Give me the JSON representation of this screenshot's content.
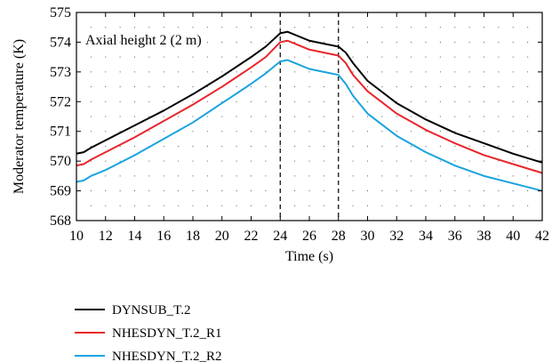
{
  "chart_data": {
    "type": "line",
    "xlabel": "Time (s)",
    "ylabel": "Moderator temperature (K)",
    "annotation": "Axial height 2 (2 m)",
    "xlim": [
      10,
      42
    ],
    "ylim": [
      568,
      575
    ],
    "xticks": [
      10,
      12,
      14,
      16,
      18,
      20,
      22,
      24,
      26,
      28,
      30,
      32,
      34,
      36,
      38,
      40,
      42
    ],
    "yticks": [
      568,
      569,
      570,
      571,
      572,
      573,
      574,
      575
    ],
    "grid": "dotted",
    "vertical_markers": [
      24,
      28
    ],
    "legend_position": "below",
    "series": [
      {
        "name": "DYNSUB_T.2",
        "color": "#000000",
        "x": [
          10,
          10.5,
          11,
          12,
          14,
          16,
          18,
          20,
          22,
          23,
          24,
          24.5,
          25,
          26,
          27,
          28,
          28.5,
          29,
          30,
          32,
          34,
          36,
          38,
          40,
          42
        ],
        "y": [
          570.25,
          570.3,
          570.45,
          570.7,
          571.2,
          571.7,
          572.25,
          572.85,
          573.5,
          573.85,
          574.3,
          574.35,
          574.25,
          574.05,
          573.95,
          573.85,
          573.65,
          573.3,
          572.7,
          571.95,
          571.4,
          570.95,
          570.6,
          570.25,
          569.95
        ]
      },
      {
        "name": "NHESDYN_T.2_R1",
        "color": "#e8262c",
        "x": [
          10,
          10.5,
          11,
          12,
          14,
          16,
          18,
          20,
          22,
          23,
          24,
          24.5,
          25,
          26,
          27,
          28,
          28.5,
          29,
          30,
          32,
          34,
          36,
          38,
          40,
          42
        ],
        "y": [
          569.85,
          569.9,
          570.05,
          570.3,
          570.8,
          571.35,
          571.9,
          572.5,
          573.15,
          573.5,
          574.0,
          574.05,
          573.95,
          573.75,
          573.65,
          573.55,
          573.3,
          572.9,
          572.35,
          571.6,
          571.05,
          570.6,
          570.2,
          569.9,
          569.6
        ]
      },
      {
        "name": "NHESDYN_T.2_R2",
        "color": "#1aa3e0",
        "x": [
          10,
          10.5,
          11,
          12,
          14,
          16,
          18,
          20,
          22,
          23,
          24,
          24.5,
          25,
          26,
          27,
          28,
          28.5,
          29,
          30,
          32,
          34,
          36,
          38,
          40,
          42
        ],
        "y": [
          569.3,
          569.35,
          569.5,
          569.7,
          570.2,
          570.75,
          571.3,
          571.95,
          572.6,
          572.95,
          573.35,
          573.4,
          573.3,
          573.1,
          573.0,
          572.9,
          572.6,
          572.2,
          571.6,
          570.85,
          570.3,
          569.85,
          569.5,
          569.25,
          569.0
        ]
      }
    ]
  }
}
